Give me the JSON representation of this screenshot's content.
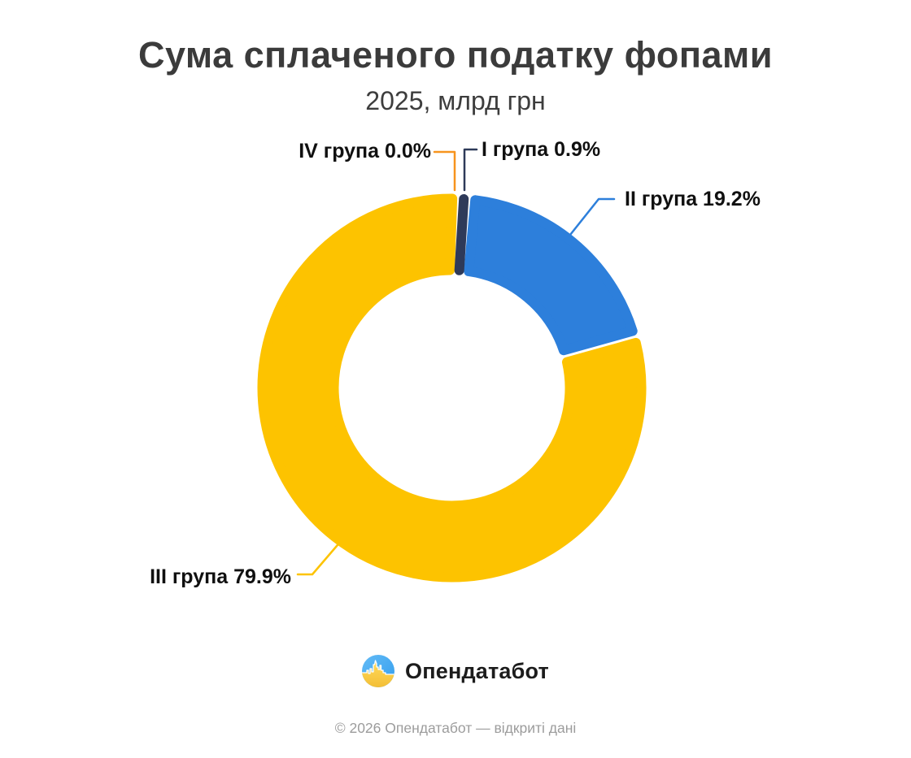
{
  "title": "Сума сплаченого податку фопами",
  "subtitle": "2025, млрд грн",
  "chart_data": {
    "type": "pie",
    "donut": true,
    "unit": "% of total",
    "title": "Сума сплаченого податку фопами",
    "subtitle": "2025, млрд грн",
    "legend_position": "none",
    "start_angle_deg": 2,
    "order_clockwise_from_top": [
      "I група",
      "II група",
      "III група",
      "IV група"
    ],
    "slices": [
      {
        "label": "I група",
        "value_pct": 0.9,
        "display": "I група 0.9%",
        "color": "#2E3A59"
      },
      {
        "label": "II група",
        "value_pct": 19.2,
        "display": "II група 19.2%",
        "color": "#2D7FDB"
      },
      {
        "label": "III група",
        "value_pct": 79.9,
        "display": "III група 79.9%",
        "color": "#FDC300"
      },
      {
        "label": "IV група",
        "value_pct": 0.0,
        "display": "IV група 0.0%",
        "color": "#F7941E"
      }
    ]
  },
  "footer": {
    "logo_text": "Опендатабот",
    "copyright": "© 2026 Опендатабот — відкриті дані"
  }
}
